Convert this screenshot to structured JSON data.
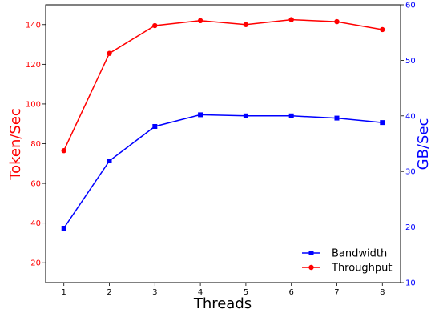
{
  "chart_data": {
    "type": "line",
    "x": [
      1,
      2,
      3,
      4,
      5,
      6,
      7,
      8
    ],
    "xlabel": "Threads",
    "xticks": [
      "1",
      "2",
      "3",
      "4",
      "5",
      "6",
      "7",
      "8"
    ],
    "left_axis": {
      "label": "Token/Sec",
      "color": "#ff0000",
      "ylim": [
        10,
        150
      ],
      "ticks": [
        "20",
        "40",
        "60",
        "80",
        "100",
        "120",
        "140"
      ]
    },
    "right_axis": {
      "label": "GB/Sec",
      "color": "#0000ff",
      "ylim": [
        10,
        60
      ],
      "ticks": [
        "10",
        "20",
        "30",
        "40",
        "50",
        "60"
      ]
    },
    "series": [
      {
        "name": "Bandwidth",
        "axis": "right",
        "color": "#0000ff",
        "marker": "square",
        "values": [
          19.8,
          31.9,
          38.1,
          40.2,
          40.0,
          40.0,
          39.6,
          38.8
        ]
      },
      {
        "name": "Throughput",
        "axis": "left",
        "color": "#ff0000",
        "marker": "circle",
        "values": [
          76.5,
          125.5,
          139.5,
          142.0,
          140.0,
          142.5,
          141.5,
          137.5
        ]
      }
    ],
    "legend": "lower-right",
    "grid": false
  }
}
